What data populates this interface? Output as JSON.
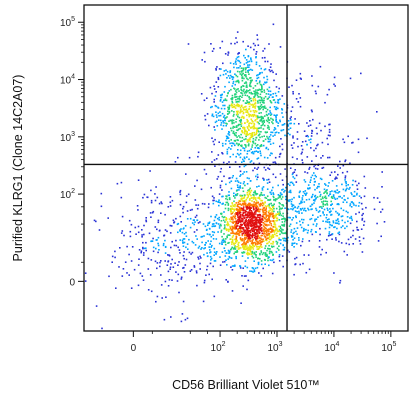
{
  "chart_data": {
    "type": "scatter",
    "subtype": "flow-cytometry-density-dot-plot",
    "title": "",
    "xlabel": "CD56 Brilliant Violet 510™",
    "ylabel": "Purified KLRG1 (Clone 14C2A07)",
    "x_scale": "biexponential",
    "y_scale": "biexponential",
    "x_ticks": [
      {
        "value": 0,
        "base": "0",
        "exp": ""
      },
      {
        "value": 100,
        "base": "10",
        "exp": "2"
      },
      {
        "value": 1000,
        "base": "10",
        "exp": "3"
      },
      {
        "value": 10000,
        "base": "10",
        "exp": "4"
      },
      {
        "value": 100000,
        "base": "10",
        "exp": "5"
      }
    ],
    "y_ticks": [
      {
        "value": 0,
        "base": "0",
        "exp": ""
      },
      {
        "value": 100,
        "base": "10",
        "exp": "2"
      },
      {
        "value": 1000,
        "base": "10",
        "exp": "3"
      },
      {
        "value": 10000,
        "base": "10",
        "exp": "4"
      },
      {
        "value": 100000,
        "base": "10",
        "exp": "5"
      }
    ],
    "quadrant_gates": {
      "x": 1500,
      "y": 330
    },
    "populations": [
      {
        "description_free": true,
        "center_x": 350,
        "center_y": 30,
        "count": 1500
      },
      {
        "description_free": true,
        "center_x": 280,
        "center_y": 3000,
        "count": 1000
      },
      {
        "description_free": true,
        "center_x": 7000,
        "center_y": 60,
        "count": 450
      },
      {
        "description_free": true,
        "center_x": 2500,
        "center_y": 1500,
        "count": 150
      },
      {
        "description_free": true,
        "center_x": 20,
        "center_y": 20,
        "count": 350
      }
    ],
    "density_colors": [
      "#2a32d6",
      "#00a6ff",
      "#22d27a",
      "#e8e814",
      "#ff7a00",
      "#e01010"
    ],
    "grid": false,
    "legend": "none"
  }
}
